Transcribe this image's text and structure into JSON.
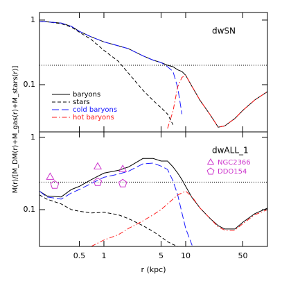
{
  "chart_data": [
    {
      "type": "line",
      "label": "dwSN",
      "ylabel": "M(r)/[M_DM(r)+M_gas(r)+M_stars(r)]",
      "xlog": true,
      "ylog": true,
      "xlim": [
        0.163,
        100
      ],
      "ylim": [
        0.0186,
        1.31
      ],
      "yticks": [
        0.1,
        1
      ],
      "hline": 0.2,
      "legend": {
        "corner": "lower left",
        "of": "series"
      },
      "x": [
        0.163,
        0.2,
        0.3,
        0.4,
        0.5,
        0.7,
        1,
        1.5,
        2,
        3,
        4,
        5,
        6,
        7,
        8,
        9,
        10,
        12,
        15,
        20,
        25,
        30,
        40,
        50,
        70,
        100
      ],
      "series": [
        {
          "name": "baryons",
          "color": "#000000",
          "dash": "solid",
          "values": [
            0.95,
            0.94,
            0.9,
            0.8,
            0.67,
            0.55,
            0.46,
            0.4,
            0.36,
            0.28,
            0.24,
            0.22,
            0.2,
            0.19,
            0.17,
            0.16,
            0.14,
            0.093,
            0.057,
            0.034,
            0.022,
            0.023,
            0.03,
            0.04,
            0.058,
            0.078
          ]
        },
        {
          "name": "stars",
          "color": "#000000",
          "dash": "dashed",
          "values": [
            0.95,
            0.94,
            0.88,
            0.78,
            0.65,
            0.5,
            0.34,
            0.23,
            0.15,
            0.082,
            0.057,
            0.044,
            0.035,
            0.024,
            null,
            null,
            null,
            null,
            null,
            null,
            null,
            null,
            null,
            null,
            null,
            null
          ]
        },
        {
          "name": "cold baryons",
          "color": "#1a1aff",
          "dash": "longdash",
          "values": [
            0.95,
            0.94,
            0.9,
            0.8,
            0.67,
            0.55,
            0.46,
            0.4,
            0.36,
            0.28,
            0.24,
            0.22,
            0.19,
            0.16,
            0.09,
            0.035,
            null,
            null,
            null,
            null,
            null,
            null,
            null,
            null,
            null,
            null
          ]
        },
        {
          "name": "hot baryons",
          "color": "#ff1a1a",
          "dash": "dashdot",
          "values": [
            null,
            null,
            null,
            null,
            null,
            null,
            null,
            null,
            null,
            null,
            null,
            null,
            0.021,
            0.039,
            0.093,
            0.13,
            0.14,
            0.093,
            0.057,
            0.034,
            0.022,
            0.023,
            0.03,
            0.04,
            0.058,
            0.078
          ]
        }
      ]
    },
    {
      "type": "line",
      "label": "dwALL_1",
      "xlabel": "r (kpc)",
      "xlog": true,
      "ylog": true,
      "xlim": [
        0.163,
        100
      ],
      "ylim": [
        0.031,
        1.19
      ],
      "yticks": [
        0.1,
        1
      ],
      "xticks": [
        0.5,
        1,
        5,
        10,
        50
      ],
      "hline": 0.24,
      "legend": {
        "corner": "upper right",
        "of": "points"
      },
      "x": [
        0.163,
        0.2,
        0.3,
        0.4,
        0.5,
        0.7,
        1,
        1.5,
        2,
        3,
        4,
        5,
        6,
        7,
        8,
        9,
        10,
        12,
        15,
        20,
        25,
        30,
        40,
        50,
        70,
        100
      ],
      "series": [
        {
          "name": "baryons",
          "color": "#000000",
          "dash": "solid",
          "values": [
            0.18,
            0.155,
            0.15,
            0.19,
            0.21,
            0.26,
            0.32,
            0.35,
            0.39,
            0.51,
            0.51,
            0.47,
            0.47,
            0.39,
            0.32,
            0.26,
            0.21,
            0.146,
            0.105,
            0.075,
            0.06,
            0.054,
            0.054,
            0.067,
            0.088,
            0.105
          ]
        },
        {
          "name": "stars",
          "color": "#000000",
          "dash": "dashed",
          "values": [
            0.16,
            0.14,
            0.12,
            0.1,
            0.095,
            0.09,
            0.092,
            0.085,
            0.075,
            0.06,
            0.05,
            0.042,
            0.036,
            0.033,
            0.031,
            null,
            null,
            null,
            null,
            null,
            null,
            null,
            null,
            null,
            null,
            null
          ]
        },
        {
          "name": "cold baryons",
          "color": "#1a1aff",
          "dash": "longdash",
          "values": [
            0.18,
            0.15,
            0.14,
            0.17,
            0.19,
            0.23,
            0.28,
            0.31,
            0.34,
            0.43,
            0.44,
            0.4,
            0.36,
            0.25,
            0.16,
            0.09,
            0.055,
            0.032,
            null,
            null,
            null,
            null,
            null,
            null,
            null,
            null
          ]
        },
        {
          "name": "hot baryons",
          "color": "#ff1a1a",
          "dash": "dashdot",
          "values": [
            null,
            null,
            null,
            null,
            null,
            0.031,
            0.038,
            0.045,
            0.055,
            0.07,
            0.085,
            0.1,
            0.12,
            0.14,
            0.16,
            0.17,
            0.18,
            0.15,
            0.105,
            0.075,
            0.058,
            0.052,
            0.052,
            0.064,
            0.085,
            0.1
          ]
        }
      ],
      "points": [
        {
          "name": "NGC2366",
          "color": "#cc33cc",
          "marker": "triangle",
          "x": [
            0.22,
            0.84,
            1.7
          ],
          "values": [
            0.28,
            0.39,
            0.36
          ]
        },
        {
          "name": "DDO154",
          "color": "#cc33cc",
          "marker": "pentagon",
          "x": [
            0.25,
            0.84,
            1.7
          ],
          "values": [
            0.22,
            0.24,
            0.23
          ]
        }
      ]
    }
  ]
}
